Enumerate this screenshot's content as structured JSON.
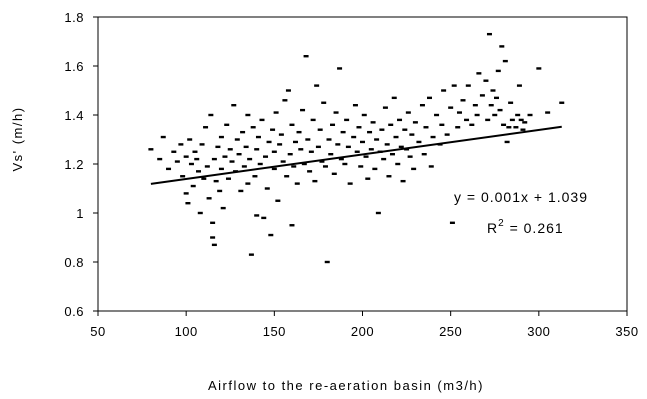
{
  "chart_data": {
    "type": "scatter",
    "xlabel": "Airflow to the re-aeration basin (m3/h)",
    "ylabel": "Vs' (m/h)",
    "xlim": [
      50,
      350
    ],
    "ylim": [
      0.6,
      1.8
    ],
    "x_ticks": [
      "50",
      "100",
      "150",
      "200",
      "250",
      "300",
      "350"
    ],
    "y_ticks": [
      "0.6",
      "0.8",
      "1",
      "1.2",
      "1.4",
      "1.6",
      "1.8"
    ],
    "grid": false,
    "legend": "none",
    "marker_color": "#000000",
    "trendline": {
      "type": "linear",
      "slope": 0.001,
      "intercept": 1.039,
      "x_range": [
        80,
        313
      ],
      "equation_label": "y = 0.001x + 1.039",
      "r2_prefix": "R",
      "r2_exponent": "2",
      "r2_suffix": " = 0.261"
    },
    "series": [
      {
        "points": [
          [
            80,
            1.26
          ],
          [
            85,
            1.22
          ],
          [
            87,
            1.31
          ],
          [
            90,
            1.18
          ],
          [
            93,
            1.25
          ],
          [
            95,
            1.21
          ],
          [
            97,
            1.28
          ],
          [
            98,
            1.15
          ],
          [
            100,
            1.23
          ],
          [
            100,
            1.08
          ],
          [
            101,
            1.04
          ],
          [
            102,
            1.3
          ],
          [
            103,
            1.2
          ],
          [
            104,
            1.11
          ],
          [
            105,
            1.25
          ],
          [
            106,
            1.22
          ],
          [
            107,
            1.17
          ],
          [
            108,
            1.0
          ],
          [
            109,
            1.28
          ],
          [
            110,
            1.14
          ],
          [
            111,
            1.35
          ],
          [
            112,
            1.19
          ],
          [
            113,
            1.06
          ],
          [
            114,
            1.4
          ],
          [
            115,
            0.96
          ],
          [
            115,
            0.9
          ],
          [
            116,
            1.22
          ],
          [
            116,
            0.87
          ],
          [
            117,
            1.13
          ],
          [
            118,
            1.27
          ],
          [
            119,
            1.09
          ],
          [
            120,
            1.31
          ],
          [
            120,
            1.18
          ],
          [
            121,
            1.02
          ],
          [
            122,
            1.23
          ],
          [
            123,
            1.36
          ],
          [
            124,
            1.14
          ],
          [
            125,
            1.26
          ],
          [
            126,
            1.21
          ],
          [
            127,
            1.44
          ],
          [
            128,
            1.17
          ],
          [
            129,
            1.3
          ],
          [
            130,
            1.24
          ],
          [
            131,
            1.09
          ],
          [
            132,
            1.33
          ],
          [
            133,
            1.19
          ],
          [
            134,
            1.27
          ],
          [
            135,
            1.4
          ],
          [
            135,
            1.12
          ],
          [
            136,
            1.22
          ],
          [
            137,
            0.83
          ],
          [
            138,
            1.35
          ],
          [
            139,
            1.15
          ],
          [
            140,
            1.26
          ],
          [
            140,
            0.99
          ],
          [
            141,
            1.31
          ],
          [
            142,
            1.2
          ],
          [
            143,
            1.38
          ],
          [
            144,
            0.98
          ],
          [
            145,
            1.23
          ],
          [
            146,
            1.1
          ],
          [
            147,
            1.29
          ],
          [
            148,
            0.91
          ],
          [
            149,
            1.34
          ],
          [
            150,
            1.18
          ],
          [
            150,
            1.25
          ],
          [
            151,
            1.41
          ],
          [
            152,
            1.05
          ],
          [
            153,
            1.28
          ],
          [
            154,
            1.32
          ],
          [
            155,
            1.21
          ],
          [
            156,
            1.46
          ],
          [
            157,
            1.15
          ],
          [
            158,
            1.5
          ],
          [
            159,
            1.24
          ],
          [
            160,
            1.36
          ],
          [
            160,
            0.95
          ],
          [
            161,
            1.19
          ],
          [
            162,
            1.29
          ],
          [
            163,
            1.12
          ],
          [
            164,
            1.33
          ],
          [
            165,
            1.26
          ],
          [
            166,
            1.42
          ],
          [
            167,
            1.2
          ],
          [
            168,
            1.64
          ],
          [
            169,
            1.3
          ],
          [
            170,
            1.17
          ],
          [
            171,
            1.25
          ],
          [
            172,
            1.38
          ],
          [
            173,
            1.13
          ],
          [
            174,
            1.52
          ],
          [
            175,
            1.27
          ],
          [
            176,
            1.34
          ],
          [
            177,
            1.21
          ],
          [
            178,
            1.45
          ],
          [
            179,
            1.19
          ],
          [
            180,
            0.8
          ],
          [
            181,
            1.3
          ],
          [
            182,
            1.24
          ],
          [
            183,
            1.36
          ],
          [
            184,
            1.16
          ],
          [
            185,
            1.41
          ],
          [
            186,
            1.28
          ],
          [
            187,
            1.59
          ],
          [
            188,
            1.22
          ],
          [
            189,
            1.33
          ],
          [
            190,
            1.2
          ],
          [
            191,
            1.38
          ],
          [
            192,
            1.27
          ],
          [
            193,
            1.12
          ],
          [
            195,
            1.31
          ],
          [
            196,
            1.44
          ],
          [
            197,
            1.25
          ],
          [
            198,
            1.35
          ],
          [
            199,
            1.19
          ],
          [
            200,
            1.29
          ],
          [
            201,
            1.4
          ],
          [
            202,
            1.23
          ],
          [
            203,
            1.14
          ],
          [
            204,
            1.33
          ],
          [
            205,
            1.26
          ],
          [
            206,
            1.37
          ],
          [
            207,
            1.18
          ],
          [
            208,
            1.3
          ],
          [
            209,
            1.0
          ],
          [
            210,
            1.25
          ],
          [
            211,
            1.34
          ],
          [
            212,
            1.22
          ],
          [
            213,
            1.43
          ],
          [
            214,
            1.28
          ],
          [
            215,
            1.15
          ],
          [
            216,
            1.36
          ],
          [
            217,
            1.24
          ],
          [
            218,
            1.47
          ],
          [
            219,
            1.31
          ],
          [
            220,
            1.2
          ],
          [
            221,
            1.38
          ],
          [
            222,
            1.27
          ],
          [
            223,
            1.13
          ],
          [
            224,
            1.34
          ],
          [
            225,
            1.26
          ],
          [
            226,
            1.41
          ],
          [
            227,
            1.23
          ],
          [
            228,
            1.32
          ],
          [
            229,
            1.18
          ],
          [
            230,
            1.37
          ],
          [
            232,
            1.29
          ],
          [
            234,
            1.44
          ],
          [
            235,
            1.24
          ],
          [
            236,
            1.35
          ],
          [
            238,
            1.47
          ],
          [
            239,
            1.19
          ],
          [
            240,
            1.31
          ],
          [
            242,
            1.4
          ],
          [
            244,
            1.28
          ],
          [
            245,
            1.36
          ],
          [
            246,
            1.5
          ],
          [
            248,
            1.32
          ],
          [
            250,
            1.43
          ],
          [
            251,
            0.96
          ],
          [
            252,
            1.52
          ],
          [
            254,
            1.35
          ],
          [
            255,
            1.41
          ],
          [
            257,
            1.46
          ],
          [
            259,
            1.38
          ],
          [
            260,
            1.52
          ],
          [
            262,
            1.36
          ],
          [
            264,
            1.44
          ],
          [
            265,
            1.4
          ],
          [
            266,
            1.57
          ],
          [
            268,
            1.48
          ],
          [
            270,
            1.54
          ],
          [
            271,
            1.38
          ],
          [
            272,
            1.73
          ],
          [
            273,
            1.44
          ],
          [
            274,
            1.5
          ],
          [
            275,
            1.4
          ],
          [
            276,
            1.47
          ],
          [
            277,
            1.58
          ],
          [
            278,
            1.42
          ],
          [
            279,
            1.68
          ],
          [
            280,
            1.36
          ],
          [
            281,
            1.62
          ],
          [
            282,
            1.29
          ],
          [
            283,
            1.35
          ],
          [
            284,
            1.45
          ],
          [
            285,
            1.38
          ],
          [
            287,
            1.35
          ],
          [
            288,
            1.4
          ],
          [
            289,
            1.52
          ],
          [
            290,
            1.38
          ],
          [
            291,
            1.34
          ],
          [
            292,
            1.37
          ],
          [
            295,
            1.4
          ],
          [
            300,
            1.59
          ],
          [
            305,
            1.41
          ],
          [
            313,
            1.45
          ]
        ]
      }
    ]
  }
}
